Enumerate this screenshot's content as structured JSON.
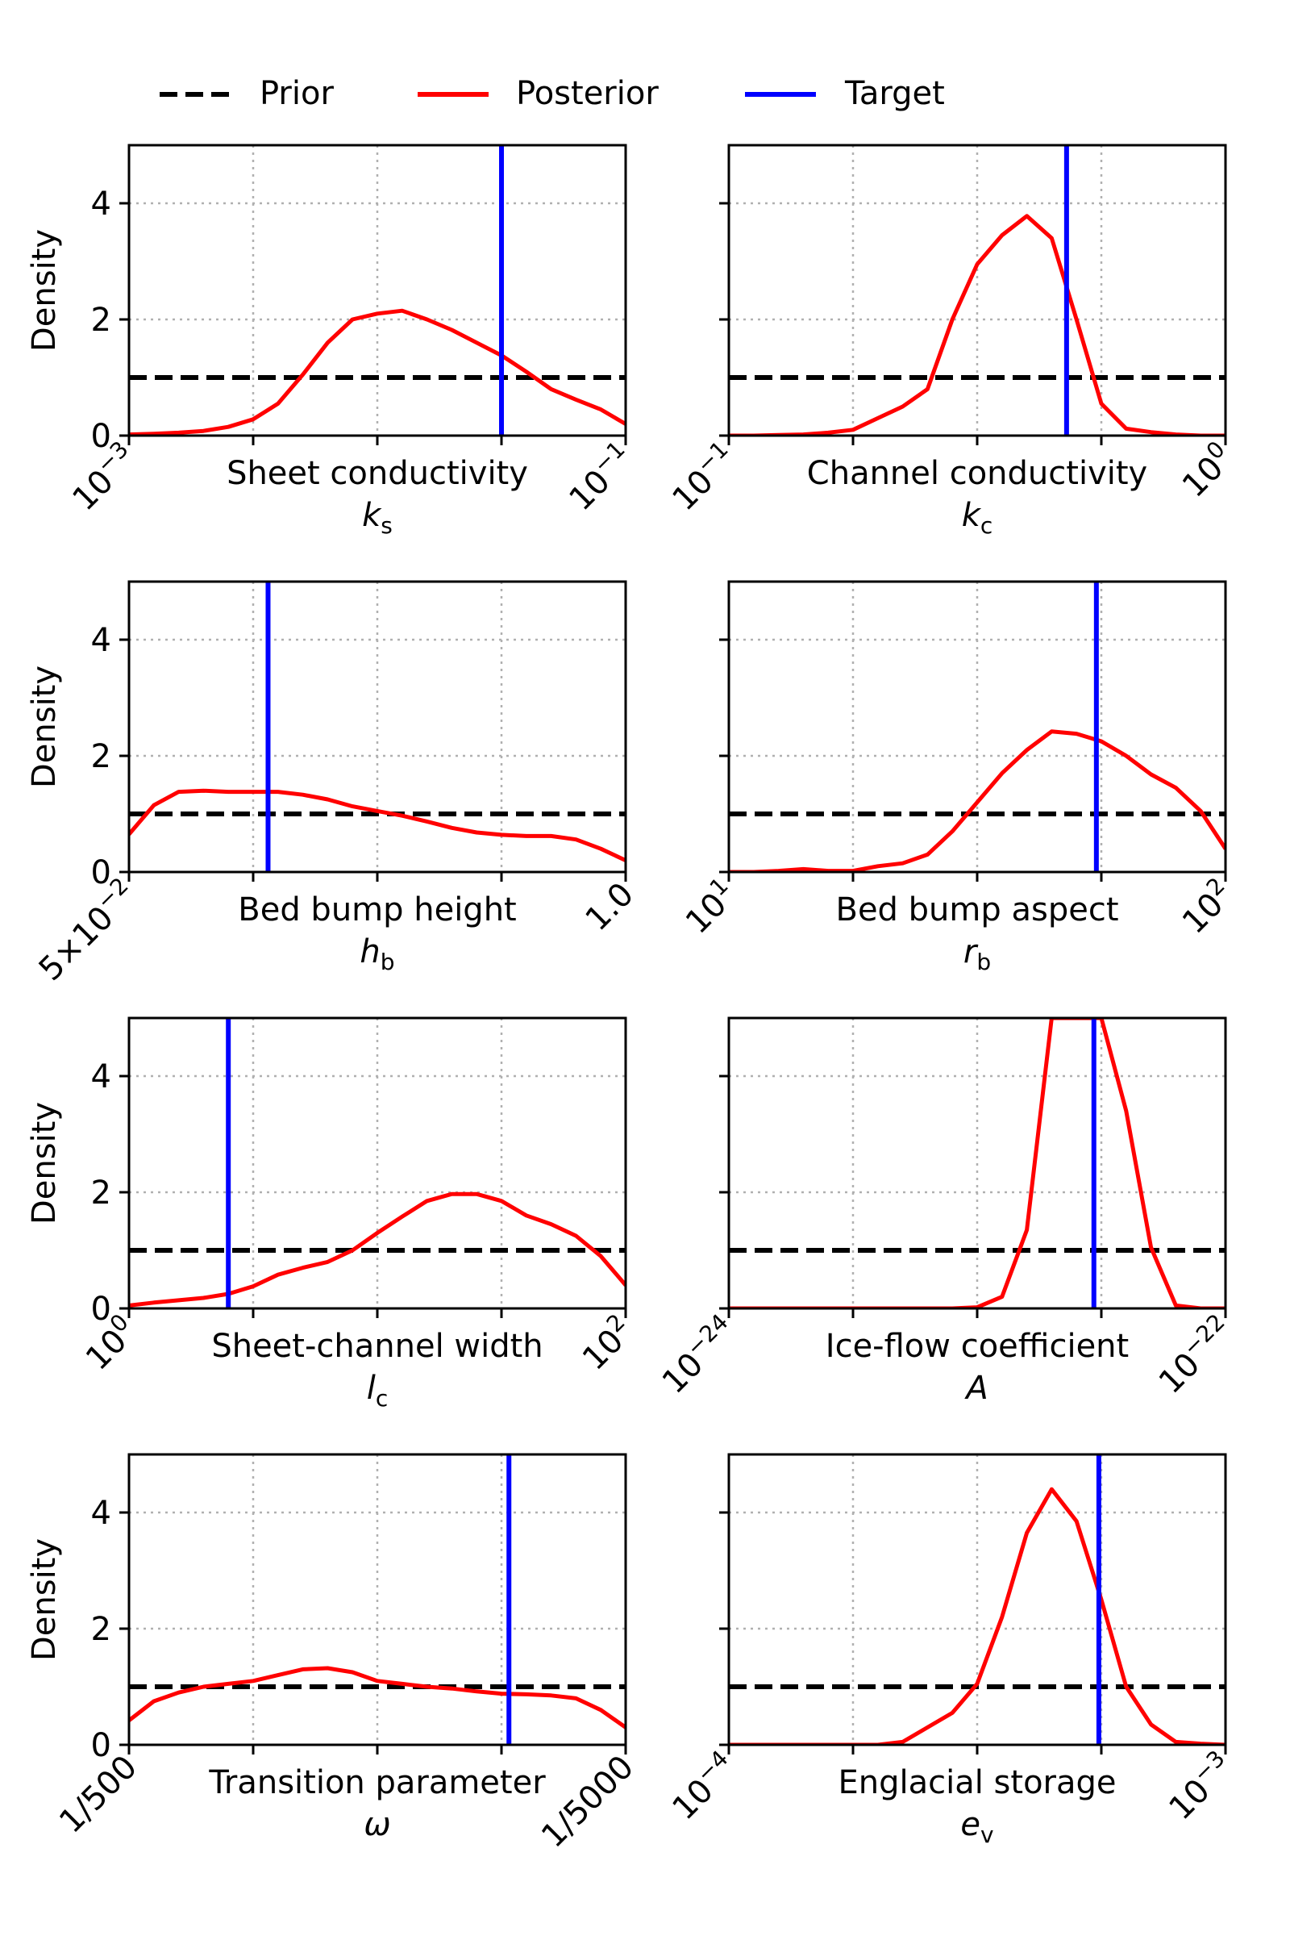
{
  "legend": {
    "prior": "Prior",
    "posterior": "Posterior",
    "target": "Target"
  },
  "colors": {
    "prior": "#000000",
    "posterior": "#ff0000",
    "target": "#0000ff",
    "grid": "#b0b0b0"
  },
  "ylabel": "Density",
  "chart_data": [
    {
      "type": "line",
      "title": "Sheet conductivity",
      "symbol": "k",
      "subscript": "s",
      "ylabel": "Density",
      "ylim": [
        0,
        5
      ],
      "yticks": [
        "0",
        "2",
        "4"
      ],
      "xtick_labels": [
        {
          "base": "10",
          "exp": "−3"
        },
        {
          "base": "10",
          "exp": "−1"
        }
      ],
      "x": [
        0,
        0.05,
        0.1,
        0.15,
        0.2,
        0.25,
        0.3,
        0.35,
        0.4,
        0.45,
        0.5,
        0.55,
        0.6,
        0.65,
        0.7,
        0.75,
        0.8,
        0.85,
        0.9,
        0.95,
        1.0
      ],
      "series": [
        {
          "name": "Prior",
          "values": [
            1,
            1,
            1,
            1,
            1,
            1,
            1,
            1,
            1,
            1,
            1,
            1,
            1,
            1,
            1,
            1,
            1,
            1,
            1,
            1,
            1
          ]
        },
        {
          "name": "Posterior",
          "values": [
            0.02,
            0.03,
            0.05,
            0.08,
            0.15,
            0.28,
            0.55,
            1.05,
            1.6,
            2.0,
            2.1,
            2.15,
            2.0,
            1.82,
            1.6,
            1.38,
            1.1,
            0.8,
            0.62,
            0.45,
            0.2
          ]
        }
      ],
      "target": 0.75
    },
    {
      "type": "line",
      "title": "Channel conductivity",
      "symbol": "k",
      "subscript": "c",
      "ylabel": "",
      "ylim": [
        0,
        5
      ],
      "yticks": [
        "",
        "",
        ""
      ],
      "xtick_labels": [
        {
          "base": "10",
          "exp": "−1"
        },
        {
          "base": "10",
          "exp": "0"
        }
      ],
      "x": [
        0,
        0.05,
        0.1,
        0.15,
        0.2,
        0.25,
        0.3,
        0.35,
        0.4,
        0.45,
        0.5,
        0.55,
        0.6,
        0.65,
        0.7,
        0.75,
        0.8,
        0.85,
        0.9,
        0.95,
        1.0
      ],
      "series": [
        {
          "name": "Prior",
          "values": [
            1,
            1,
            1,
            1,
            1,
            1,
            1,
            1,
            1,
            1,
            1,
            1,
            1,
            1,
            1,
            1,
            1,
            1,
            1,
            1,
            1
          ]
        },
        {
          "name": "Posterior",
          "values": [
            0.0,
            0.0,
            0.01,
            0.02,
            0.05,
            0.1,
            0.3,
            0.5,
            0.8,
            2.0,
            2.95,
            3.45,
            3.78,
            3.4,
            2.0,
            0.55,
            0.12,
            0.06,
            0.02,
            0.0,
            0.0
          ]
        }
      ],
      "target": 0.68
    },
    {
      "type": "line",
      "title": "Bed bump height",
      "symbol": "h",
      "subscript": "b",
      "ylabel": "Density",
      "ylim": [
        0,
        5
      ],
      "yticks": [
        "0",
        "2",
        "4"
      ],
      "xtick_labels": [
        {
          "base": "5×10",
          "exp": "−2"
        },
        {
          "base": "1.0",
          "exp": ""
        }
      ],
      "x": [
        0,
        0.05,
        0.1,
        0.15,
        0.2,
        0.25,
        0.3,
        0.35,
        0.4,
        0.45,
        0.5,
        0.55,
        0.6,
        0.65,
        0.7,
        0.75,
        0.8,
        0.85,
        0.9,
        0.95,
        1.0
      ],
      "series": [
        {
          "name": "Prior",
          "values": [
            1,
            1,
            1,
            1,
            1,
            1,
            1,
            1,
            1,
            1,
            1,
            1,
            1,
            1,
            1,
            1,
            1,
            1,
            1,
            1,
            1
          ]
        },
        {
          "name": "Posterior",
          "values": [
            0.65,
            1.15,
            1.38,
            1.4,
            1.38,
            1.38,
            1.38,
            1.33,
            1.25,
            1.13,
            1.05,
            0.97,
            0.87,
            0.76,
            0.68,
            0.64,
            0.62,
            0.62,
            0.56,
            0.4,
            0.2
          ]
        }
      ],
      "target": 0.28
    },
    {
      "type": "line",
      "title": "Bed bump aspect",
      "symbol": "r",
      "subscript": "b",
      "ylabel": "",
      "ylim": [
        0,
        5
      ],
      "yticks": [
        "",
        "",
        ""
      ],
      "xtick_labels": [
        {
          "base": "10",
          "exp": "1"
        },
        {
          "base": "10",
          "exp": "2"
        }
      ],
      "x": [
        0,
        0.05,
        0.1,
        0.15,
        0.2,
        0.25,
        0.3,
        0.35,
        0.4,
        0.45,
        0.5,
        0.55,
        0.6,
        0.65,
        0.7,
        0.75,
        0.8,
        0.85,
        0.9,
        0.95,
        1.0
      ],
      "series": [
        {
          "name": "Prior",
          "values": [
            1,
            1,
            1,
            1,
            1,
            1,
            1,
            1,
            1,
            1,
            1,
            1,
            1,
            1,
            1,
            1,
            1,
            1,
            1,
            1,
            1
          ]
        },
        {
          "name": "Posterior",
          "values": [
            0.0,
            0.0,
            0.02,
            0.05,
            0.02,
            0.02,
            0.1,
            0.15,
            0.3,
            0.7,
            1.2,
            1.7,
            2.1,
            2.42,
            2.38,
            2.25,
            2.0,
            1.68,
            1.45,
            1.05,
            0.4
          ]
        }
      ],
      "target": 0.74
    },
    {
      "type": "line",
      "title": "Sheet-channel width",
      "symbol": "l",
      "subscript": "c",
      "ylabel": "Density",
      "ylim": [
        0,
        5
      ],
      "yticks": [
        "0",
        "2",
        "4"
      ],
      "xtick_labels": [
        {
          "base": "10",
          "exp": "0"
        },
        {
          "base": "10",
          "exp": "2"
        }
      ],
      "x": [
        0,
        0.05,
        0.1,
        0.15,
        0.2,
        0.25,
        0.3,
        0.35,
        0.4,
        0.45,
        0.5,
        0.55,
        0.6,
        0.65,
        0.7,
        0.75,
        0.8,
        0.85,
        0.9,
        0.95,
        1.0
      ],
      "series": [
        {
          "name": "Prior",
          "values": [
            1,
            1,
            1,
            1,
            1,
            1,
            1,
            1,
            1,
            1,
            1,
            1,
            1,
            1,
            1,
            1,
            1,
            1,
            1,
            1,
            1
          ]
        },
        {
          "name": "Posterior",
          "values": [
            0.05,
            0.1,
            0.14,
            0.18,
            0.25,
            0.38,
            0.58,
            0.7,
            0.8,
            1.0,
            1.3,
            1.58,
            1.85,
            1.97,
            1.97,
            1.85,
            1.6,
            1.45,
            1.25,
            0.9,
            0.4
          ]
        }
      ],
      "target": 0.2
    },
    {
      "type": "line",
      "title": "Ice-flow coefficient",
      "symbol": "A",
      "subscript": "",
      "ylabel": "",
      "ylim": [
        0,
        5
      ],
      "yticks": [
        "",
        "",
        ""
      ],
      "xtick_labels": [
        {
          "base": "10",
          "exp": "−24"
        },
        {
          "base": "10",
          "exp": "−22"
        }
      ],
      "x": [
        0,
        0.05,
        0.1,
        0.15,
        0.2,
        0.25,
        0.3,
        0.35,
        0.4,
        0.45,
        0.5,
        0.55,
        0.6,
        0.65,
        0.7,
        0.75,
        0.8,
        0.85,
        0.9,
        0.95,
        1.0
      ],
      "series": [
        {
          "name": "Prior",
          "values": [
            1,
            1,
            1,
            1,
            1,
            1,
            1,
            1,
            1,
            1,
            1,
            1,
            1,
            1,
            1,
            1,
            1,
            1,
            1,
            1,
            1
          ]
        },
        {
          "name": "Posterior",
          "values": [
            0.0,
            0.0,
            0.0,
            0.0,
            0.0,
            0.0,
            0.0,
            0.0,
            0.0,
            0.0,
            0.02,
            0.2,
            1.35,
            5.0,
            5.0,
            5.0,
            3.4,
            1.05,
            0.05,
            0.0,
            0.0
          ]
        }
      ],
      "target": 0.735
    },
    {
      "type": "line",
      "title": "Transition parameter",
      "symbol": "ω",
      "subscript": "",
      "ylabel": "Density",
      "ylim": [
        0,
        5
      ],
      "yticks": [
        "0",
        "2",
        "4"
      ],
      "xtick_labels": [
        {
          "base": "1/500",
          "exp": ""
        },
        {
          "base": "1/5000",
          "exp": ""
        }
      ],
      "x": [
        0,
        0.05,
        0.1,
        0.15,
        0.2,
        0.25,
        0.3,
        0.35,
        0.4,
        0.45,
        0.5,
        0.55,
        0.6,
        0.65,
        0.7,
        0.75,
        0.8,
        0.85,
        0.9,
        0.95,
        1.0
      ],
      "series": [
        {
          "name": "Prior",
          "values": [
            1,
            1,
            1,
            1,
            1,
            1,
            1,
            1,
            1,
            1,
            1,
            1,
            1,
            1,
            1,
            1,
            1,
            1,
            1,
            1,
            1
          ]
        },
        {
          "name": "Posterior",
          "values": [
            0.42,
            0.75,
            0.9,
            1.0,
            1.05,
            1.1,
            1.2,
            1.3,
            1.32,
            1.25,
            1.1,
            1.05,
            1.0,
            0.97,
            0.92,
            0.88,
            0.87,
            0.85,
            0.8,
            0.6,
            0.3
          ]
        }
      ],
      "target": 0.765
    },
    {
      "type": "line",
      "title": "Englacial storage",
      "symbol": "e",
      "subscript": "v",
      "ylabel": "",
      "ylim": [
        0,
        5
      ],
      "yticks": [
        "",
        "",
        ""
      ],
      "xtick_labels": [
        {
          "base": "10",
          "exp": "−4"
        },
        {
          "base": "10",
          "exp": "−3"
        }
      ],
      "x": [
        0,
        0.05,
        0.1,
        0.15,
        0.2,
        0.25,
        0.3,
        0.35,
        0.4,
        0.45,
        0.5,
        0.55,
        0.6,
        0.65,
        0.7,
        0.75,
        0.8,
        0.85,
        0.9,
        0.95,
        1.0
      ],
      "series": [
        {
          "name": "Prior",
          "values": [
            1,
            1,
            1,
            1,
            1,
            1,
            1,
            1,
            1,
            1,
            1,
            1,
            1,
            1,
            1,
            1,
            1,
            1,
            1,
            1,
            1
          ]
        },
        {
          "name": "Posterior",
          "values": [
            0.0,
            0.0,
            0.0,
            0.0,
            0.0,
            0.0,
            0.0,
            0.05,
            0.3,
            0.55,
            1.05,
            2.2,
            3.65,
            4.4,
            3.85,
            2.5,
            1.0,
            0.35,
            0.05,
            0.02,
            0.0
          ]
        }
      ],
      "target": 0.745
    }
  ]
}
